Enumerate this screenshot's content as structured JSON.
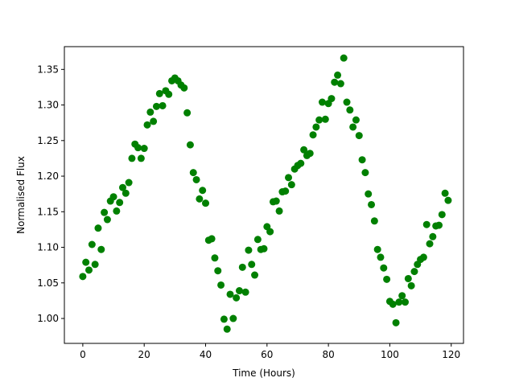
{
  "chart_data": {
    "type": "scatter",
    "xlabel": "Time (Hours)",
    "ylabel": "Normalised Flux",
    "xlim": [
      -6,
      124
    ],
    "ylim": [
      0.965,
      1.382
    ],
    "xticks": [
      {
        "value": 0,
        "label": "0"
      },
      {
        "value": 20,
        "label": "20"
      },
      {
        "value": 40,
        "label": "40"
      },
      {
        "value": 60,
        "label": "60"
      },
      {
        "value": 80,
        "label": "80"
      },
      {
        "value": 100,
        "label": "100"
      },
      {
        "value": 120,
        "label": "120"
      }
    ],
    "yticks": [
      {
        "value": 1.0,
        "label": "1.00"
      },
      {
        "value": 1.05,
        "label": "1.05"
      },
      {
        "value": 1.1,
        "label": "1.10"
      },
      {
        "value": 1.15,
        "label": "1.15"
      },
      {
        "value": 1.2,
        "label": "1.20"
      },
      {
        "value": 1.25,
        "label": "1.25"
      },
      {
        "value": 1.3,
        "label": "1.30"
      },
      {
        "value": 1.35,
        "label": "1.35"
      }
    ],
    "grid": false,
    "marker_color": "#008000",
    "series": [
      {
        "x": [
          0,
          1,
          2,
          3,
          4,
          5,
          6,
          7,
          8,
          9,
          10,
          11,
          12,
          13,
          14,
          15,
          16,
          17,
          18,
          19,
          20,
          21,
          22,
          23,
          24,
          25,
          26,
          27,
          28,
          29,
          30,
          31,
          32,
          33,
          34,
          35,
          36,
          37,
          38,
          39,
          40,
          41,
          42,
          43,
          44,
          45,
          46,
          47,
          48,
          49,
          50,
          51,
          52,
          53,
          54,
          55,
          56,
          57,
          58,
          59,
          60,
          61,
          62,
          63,
          64,
          65,
          66,
          67,
          68,
          69,
          70,
          71,
          72,
          73,
          74,
          75,
          76,
          77,
          78,
          79,
          80,
          81,
          82,
          83,
          84,
          85,
          86,
          87,
          88,
          89,
          90,
          91,
          92,
          93,
          94,
          95,
          96,
          97,
          98,
          99,
          100,
          101,
          102,
          103,
          104,
          105,
          106,
          107,
          108,
          109,
          110,
          111,
          112,
          113,
          114,
          115,
          116,
          117,
          118,
          119
        ],
        "y": [
          1.059,
          1.079,
          1.068,
          1.104,
          1.076,
          1.127,
          1.097,
          1.149,
          1.139,
          1.165,
          1.171,
          1.151,
          1.163,
          1.184,
          1.176,
          1.191,
          1.225,
          1.245,
          1.24,
          1.225,
          1.239,
          1.272,
          1.29,
          1.277,
          1.298,
          1.316,
          1.299,
          1.32,
          1.315,
          1.334,
          1.338,
          1.334,
          1.328,
          1.324,
          1.289,
          1.244,
          1.205,
          1.195,
          1.168,
          1.18,
          1.162,
          1.11,
          1.112,
          1.085,
          1.067,
          1.047,
          0.999,
          0.985,
          1.034,
          1.0,
          1.029,
          1.039,
          1.072,
          1.037,
          1.096,
          1.076,
          1.061,
          1.111,
          1.097,
          1.098,
          1.129,
          1.122,
          1.164,
          1.165,
          1.151,
          1.178,
          1.179,
          1.198,
          1.188,
          1.21,
          1.215,
          1.218,
          1.237,
          1.229,
          1.232,
          1.258,
          1.269,
          1.279,
          1.304,
          1.28,
          1.302,
          1.309,
          1.332,
          1.342,
          1.33,
          1.366,
          1.304,
          1.293,
          1.269,
          1.279,
          1.257,
          1.223,
          1.205,
          1.175,
          1.16,
          1.137,
          1.097,
          1.086,
          1.071,
          1.055,
          1.024,
          1.02,
          0.994,
          1.023,
          1.032,
          1.023,
          1.056,
          1.046,
          1.066,
          1.076,
          1.083,
          1.086,
          1.132,
          1.105,
          1.115,
          1.13,
          1.131,
          1.146,
          1.176,
          1.166
        ]
      }
    ]
  }
}
